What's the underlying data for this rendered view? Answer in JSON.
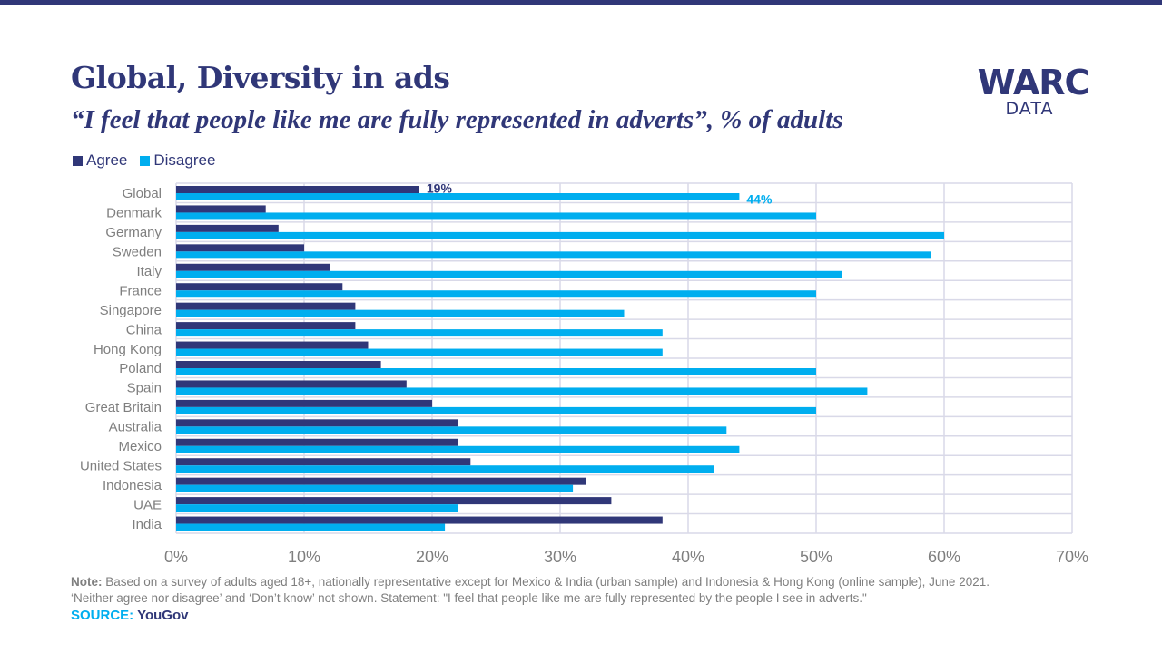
{
  "header": {
    "title": "Global, Diversity in ads",
    "subtitle": "“I feel that people like me are fully represented in adverts”, % of adults"
  },
  "logo": {
    "main": "WARC",
    "sub": "DATA"
  },
  "colors": {
    "agree": "#303778",
    "disagree": "#00AEEF",
    "grid": "#D9D9E8",
    "axis_text": "#7f7f7f",
    "brand": "#303778"
  },
  "footer": {
    "note_label": "Note:",
    "note_line1": " Based on a survey of adults aged 18+, nationally representative except for Mexico & India (urban sample) and Indonesia & Hong Kong (online sample), June 2021.",
    "note_line2": "‘Neither agree nor disagree’ and ‘Don’t know’ not shown. Statement: \"I feel that people  like me are fully represented by the people I see in adverts.\"",
    "source_label": "SOURCE:",
    "source_value": "YouGov"
  },
  "chart_data": {
    "type": "bar",
    "orientation": "horizontal",
    "title": "Global, Diversity in ads",
    "subtitle": "“I feel that people like me are fully represented in adverts”, % of adults",
    "xlabel": "",
    "ylabel": "",
    "xlim": [
      0,
      70
    ],
    "xticks": [
      0,
      10,
      20,
      30,
      40,
      50,
      60,
      70
    ],
    "xtick_labels": [
      "0%",
      "10%",
      "20%",
      "30%",
      "40%",
      "50%",
      "60%",
      "70%"
    ],
    "grid": true,
    "legend_position": "top-left",
    "categories": [
      "Global",
      "Denmark",
      "Germany",
      "Sweden",
      "Italy",
      "France",
      "Singapore",
      "China",
      "Hong Kong",
      "Poland",
      "Spain",
      "Great Britain",
      "Australia",
      "Mexico",
      "United States",
      "Indonesia",
      "UAE",
      "India"
    ],
    "series": [
      {
        "name": "Agree",
        "color": "#303778",
        "values": [
          19,
          7,
          8,
          10,
          12,
          13,
          14,
          14,
          15,
          16,
          18,
          20,
          22,
          22,
          23,
          32,
          34,
          38
        ]
      },
      {
        "name": "Disagree",
        "color": "#00AEEF",
        "values": [
          44,
          50,
          60,
          59,
          52,
          50,
          35,
          38,
          38,
          50,
          54,
          50,
          43,
          44,
          42,
          31,
          22,
          21
        ]
      }
    ],
    "data_labels": [
      {
        "series": "Agree",
        "category": "Global",
        "text": "19%"
      },
      {
        "series": "Disagree",
        "category": "Global",
        "text": "44%"
      }
    ]
  }
}
